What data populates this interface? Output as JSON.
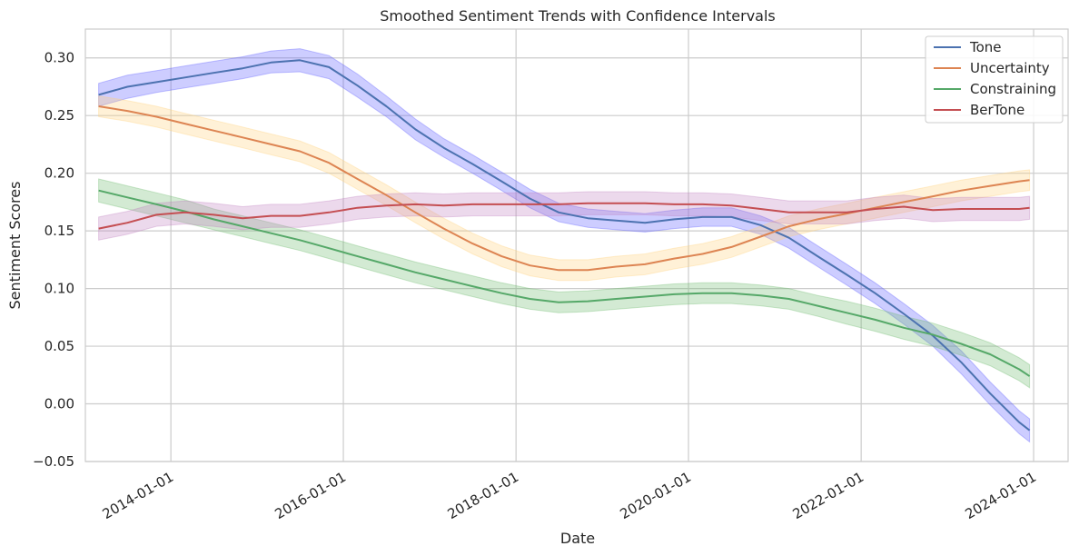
{
  "chart_data": {
    "type": "line",
    "title": "Smoothed Sentiment Trends with Confidence Intervals",
    "xlabel": "Date",
    "ylabel": "Sentiment Scores",
    "ylim": [
      -0.05,
      0.325
    ],
    "xlim": [
      "2013-01-04",
      "2024-05-26"
    ],
    "grid": true,
    "legend_position": "top-right",
    "x_ticks": [
      "2014-01-01",
      "2016-01-01",
      "2018-01-01",
      "2020-01-01",
      "2022-01-01",
      "2024-01-01"
    ],
    "y_ticks": [
      -0.05,
      0.0,
      0.05,
      0.1,
      0.15,
      0.2,
      0.25,
      0.3
    ],
    "y_tick_labels": [
      "−0.05",
      "0.00",
      "0.05",
      "0.10",
      "0.15",
      "0.20",
      "0.25",
      "0.30"
    ],
    "x": [
      "2013-03-01",
      "2013-07-01",
      "2013-11-01",
      "2014-03-01",
      "2014-07-01",
      "2014-11-01",
      "2015-03-01",
      "2015-07-01",
      "2015-11-01",
      "2016-03-01",
      "2016-07-01",
      "2016-11-01",
      "2017-03-01",
      "2017-07-01",
      "2017-11-01",
      "2018-03-01",
      "2018-07-01",
      "2018-11-01",
      "2019-03-01",
      "2019-07-01",
      "2019-11-01",
      "2020-03-01",
      "2020-07-01",
      "2020-11-01",
      "2021-03-01",
      "2021-07-01",
      "2021-11-01",
      "2022-03-01",
      "2022-07-01",
      "2022-11-01",
      "2023-03-01",
      "2023-07-01",
      "2023-11-01",
      "2023-12-15"
    ],
    "series": [
      {
        "name": "Tone",
        "color": "#4c72b0",
        "band_color": "#5a5aff",
        "values": [
          0.268,
          0.275,
          0.279,
          0.283,
          0.287,
          0.291,
          0.296,
          0.298,
          0.292,
          0.276,
          0.258,
          0.238,
          0.222,
          0.208,
          0.193,
          0.178,
          0.166,
          0.161,
          0.159,
          0.157,
          0.16,
          0.162,
          0.162,
          0.155,
          0.144,
          0.128,
          0.112,
          0.096,
          0.078,
          0.059,
          0.036,
          0.009,
          -0.016,
          -0.023
        ],
        "lower": [
          0.258,
          0.265,
          0.27,
          0.274,
          0.278,
          0.282,
          0.287,
          0.288,
          0.282,
          0.266,
          0.249,
          0.229,
          0.214,
          0.2,
          0.185,
          0.17,
          0.158,
          0.153,
          0.151,
          0.149,
          0.152,
          0.154,
          0.154,
          0.147,
          0.135,
          0.119,
          0.103,
          0.087,
          0.069,
          0.05,
          0.026,
          -0.001,
          -0.026,
          -0.033
        ],
        "upper": [
          0.278,
          0.285,
          0.289,
          0.293,
          0.297,
          0.301,
          0.306,
          0.308,
          0.302,
          0.286,
          0.267,
          0.247,
          0.23,
          0.216,
          0.201,
          0.186,
          0.174,
          0.169,
          0.167,
          0.165,
          0.168,
          0.17,
          0.17,
          0.163,
          0.153,
          0.137,
          0.121,
          0.105,
          0.087,
          0.068,
          0.046,
          0.019,
          -0.006,
          -0.013
        ]
      },
      {
        "name": "Uncertainty",
        "color": "#dd8452",
        "band_color": "#ffd27a",
        "values": [
          0.258,
          0.254,
          0.249,
          0.243,
          0.237,
          0.231,
          0.225,
          0.219,
          0.209,
          0.195,
          0.181,
          0.166,
          0.152,
          0.139,
          0.128,
          0.12,
          0.116,
          0.116,
          0.119,
          0.121,
          0.126,
          0.13,
          0.136,
          0.145,
          0.154,
          0.16,
          0.165,
          0.17,
          0.175,
          0.18,
          0.185,
          0.189,
          0.193,
          0.194
        ],
        "lower": [
          0.249,
          0.245,
          0.24,
          0.234,
          0.228,
          0.222,
          0.216,
          0.21,
          0.2,
          0.186,
          0.172,
          0.157,
          0.143,
          0.13,
          0.119,
          0.111,
          0.107,
          0.107,
          0.11,
          0.112,
          0.117,
          0.121,
          0.127,
          0.136,
          0.145,
          0.151,
          0.156,
          0.161,
          0.166,
          0.171,
          0.176,
          0.18,
          0.184,
          0.185
        ],
        "upper": [
          0.267,
          0.263,
          0.258,
          0.252,
          0.246,
          0.24,
          0.234,
          0.228,
          0.218,
          0.204,
          0.19,
          0.175,
          0.161,
          0.148,
          0.137,
          0.129,
          0.125,
          0.125,
          0.128,
          0.13,
          0.135,
          0.139,
          0.145,
          0.154,
          0.163,
          0.169,
          0.174,
          0.179,
          0.184,
          0.189,
          0.194,
          0.198,
          0.202,
          0.203
        ]
      },
      {
        "name": "Constraining",
        "color": "#55a868",
        "band_color": "#6dbb6d",
        "values": [
          0.185,
          0.179,
          0.173,
          0.167,
          0.16,
          0.154,
          0.148,
          0.142,
          0.135,
          0.128,
          0.121,
          0.114,
          0.108,
          0.102,
          0.096,
          0.091,
          0.088,
          0.089,
          0.091,
          0.093,
          0.095,
          0.096,
          0.096,
          0.094,
          0.091,
          0.085,
          0.079,
          0.073,
          0.066,
          0.06,
          0.052,
          0.043,
          0.03,
          0.024
        ],
        "lower": [
          0.175,
          0.169,
          0.163,
          0.157,
          0.151,
          0.145,
          0.139,
          0.133,
          0.126,
          0.119,
          0.112,
          0.105,
          0.099,
          0.093,
          0.087,
          0.082,
          0.079,
          0.08,
          0.082,
          0.084,
          0.086,
          0.087,
          0.087,
          0.085,
          0.082,
          0.076,
          0.069,
          0.063,
          0.056,
          0.05,
          0.042,
          0.033,
          0.02,
          0.014
        ],
        "upper": [
          0.195,
          0.189,
          0.183,
          0.177,
          0.169,
          0.163,
          0.157,
          0.151,
          0.144,
          0.137,
          0.13,
          0.123,
          0.117,
          0.111,
          0.105,
          0.1,
          0.097,
          0.098,
          0.1,
          0.102,
          0.104,
          0.105,
          0.105,
          0.103,
          0.1,
          0.094,
          0.089,
          0.083,
          0.076,
          0.07,
          0.062,
          0.053,
          0.04,
          0.034
        ]
      },
      {
        "name": "BerTone",
        "color": "#c44e52",
        "band_color": "#c080c0",
        "values": [
          0.152,
          0.157,
          0.164,
          0.166,
          0.164,
          0.161,
          0.163,
          0.163,
          0.166,
          0.17,
          0.172,
          0.173,
          0.172,
          0.173,
          0.173,
          0.173,
          0.173,
          0.174,
          0.174,
          0.174,
          0.173,
          0.173,
          0.172,
          0.169,
          0.166,
          0.166,
          0.166,
          0.169,
          0.171,
          0.168,
          0.169,
          0.169,
          0.169,
          0.17
        ],
        "lower": [
          0.142,
          0.147,
          0.154,
          0.156,
          0.154,
          0.151,
          0.153,
          0.153,
          0.156,
          0.16,
          0.162,
          0.163,
          0.162,
          0.163,
          0.163,
          0.163,
          0.163,
          0.164,
          0.164,
          0.164,
          0.163,
          0.163,
          0.162,
          0.159,
          0.156,
          0.156,
          0.156,
          0.159,
          0.161,
          0.158,
          0.159,
          0.159,
          0.159,
          0.16
        ],
        "upper": [
          0.162,
          0.167,
          0.174,
          0.176,
          0.174,
          0.171,
          0.173,
          0.173,
          0.176,
          0.18,
          0.182,
          0.183,
          0.182,
          0.183,
          0.183,
          0.183,
          0.183,
          0.184,
          0.184,
          0.184,
          0.183,
          0.183,
          0.182,
          0.179,
          0.176,
          0.176,
          0.176,
          0.179,
          0.181,
          0.178,
          0.179,
          0.179,
          0.179,
          0.18
        ]
      }
    ]
  }
}
